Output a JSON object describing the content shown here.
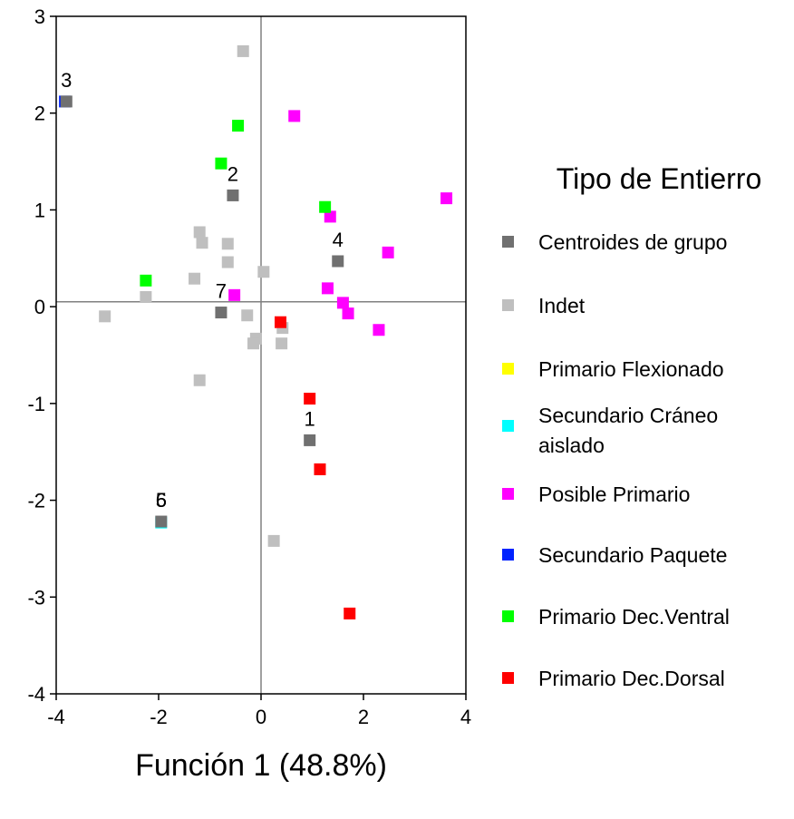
{
  "chart_data": {
    "type": "scatter",
    "xlabel": "Función 1 (48.8%)",
    "ylabel": "",
    "xlim": [
      -4,
      4
    ],
    "ylim": [
      -4,
      3
    ],
    "x_ticks": [
      "-4",
      "-2",
      "0",
      "2",
      "4"
    ],
    "y_ticks": [
      "3",
      "2",
      "1",
      "0",
      "-1",
      "-2",
      "-3",
      "-4"
    ],
    "reference_lines": {
      "x": 0,
      "y": 0.05
    },
    "legend": {
      "title": "Tipo de Entierro",
      "placement": "right"
    },
    "series": [
      {
        "name": "Centroides de grupo",
        "color": "#707070",
        "points": [
          {
            "x": 0.95,
            "y": -1.38,
            "label": "1"
          },
          {
            "x": -0.55,
            "y": 1.15,
            "label": "2"
          },
          {
            "x": -3.8,
            "y": 2.12,
            "label": "3"
          },
          {
            "x": 1.5,
            "y": 0.47,
            "label": "4"
          },
          {
            "x": -1.95,
            "y": -2.22,
            "label": "5"
          },
          {
            "x": -1.95,
            "y": -2.22,
            "label": "6"
          },
          {
            "x": -0.78,
            "y": -0.06,
            "label": "7"
          }
        ]
      },
      {
        "name": "Indet",
        "color": "#bfbfbf",
        "points": [
          {
            "x": -0.35,
            "y": 2.64
          },
          {
            "x": -1.2,
            "y": 0.77
          },
          {
            "x": -1.15,
            "y": 0.66
          },
          {
            "x": -0.65,
            "y": 0.65
          },
          {
            "x": -0.65,
            "y": 0.46
          },
          {
            "x": 0.05,
            "y": 0.36
          },
          {
            "x": -1.3,
            "y": 0.29
          },
          {
            "x": -2.25,
            "y": 0.1
          },
          {
            "x": -3.05,
            "y": -0.1
          },
          {
            "x": -0.27,
            "y": -0.09
          },
          {
            "x": -0.1,
            "y": -0.33
          },
          {
            "x": -0.15,
            "y": -0.38
          },
          {
            "x": 0.4,
            "y": -0.38
          },
          {
            "x": 0.42,
            "y": -0.22
          },
          {
            "x": -1.2,
            "y": -0.76
          },
          {
            "x": 0.25,
            "y": -2.42
          }
        ]
      },
      {
        "name": "Primario Flexionado",
        "color": "#ffff00",
        "points": []
      },
      {
        "name": "Secundario Cráneo aislado",
        "color": "#00ffff",
        "points": [
          {
            "x": -1.95,
            "y": -2.23
          }
        ]
      },
      {
        "name": "Posible Primario",
        "color": "#ff00ff",
        "points": [
          {
            "x": 0.65,
            "y": 1.97
          },
          {
            "x": 3.62,
            "y": 1.12
          },
          {
            "x": 1.35,
            "y": 0.93
          },
          {
            "x": 2.48,
            "y": 0.56
          },
          {
            "x": 1.3,
            "y": 0.19
          },
          {
            "x": 1.6,
            "y": 0.04
          },
          {
            "x": 1.7,
            "y": -0.07
          },
          {
            "x": 2.3,
            "y": -0.24
          },
          {
            "x": -0.52,
            "y": 0.12
          }
        ]
      },
      {
        "name": "Secundario Paquete",
        "color": "#0022ff",
        "points": [
          {
            "x": -3.83,
            "y": 2.12
          }
        ]
      },
      {
        "name": "Primario Dec.Ventral",
        "color": "#00ff00",
        "points": [
          {
            "x": -0.45,
            "y": 1.87
          },
          {
            "x": -0.78,
            "y": 1.48
          },
          {
            "x": 1.25,
            "y": 1.03
          },
          {
            "x": -2.25,
            "y": 0.27
          }
        ]
      },
      {
        "name": "Primario Dec.Dorsal",
        "color": "#ff0000",
        "points": [
          {
            "x": 0.38,
            "y": -0.16
          },
          {
            "x": 0.95,
            "y": -0.95
          },
          {
            "x": 1.15,
            "y": -1.68
          },
          {
            "x": 1.73,
            "y": -3.17
          }
        ]
      }
    ]
  }
}
